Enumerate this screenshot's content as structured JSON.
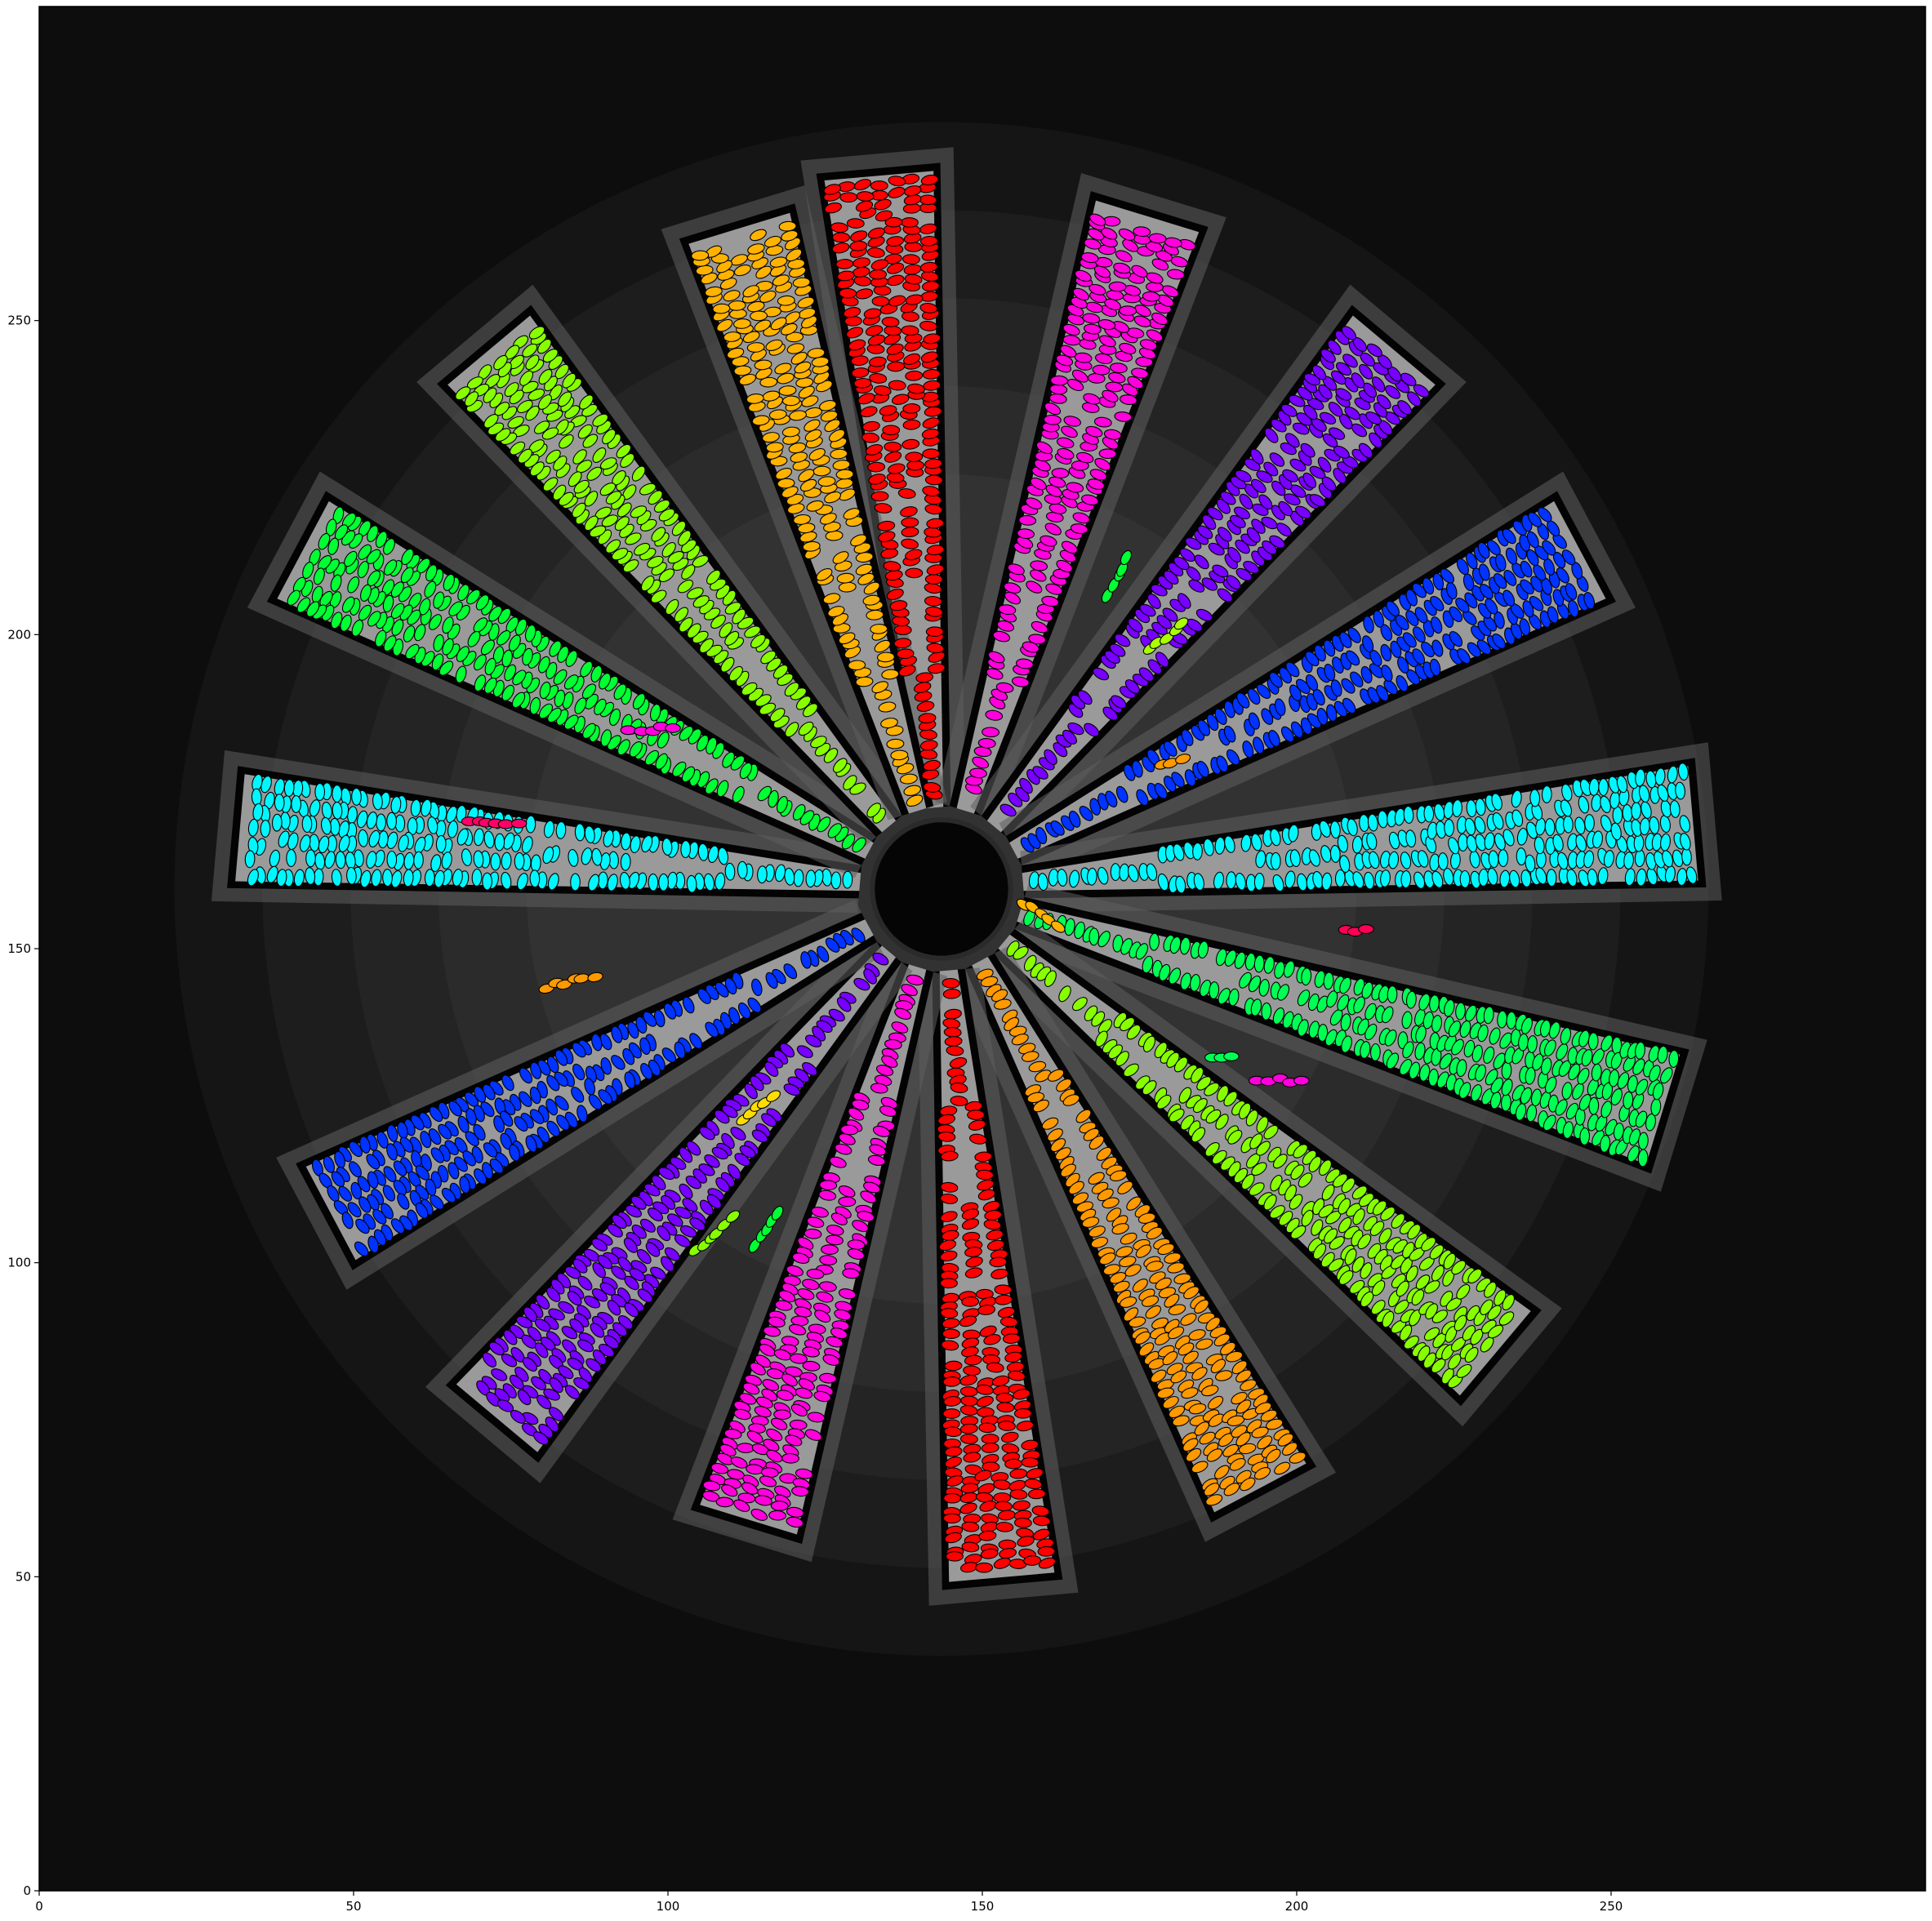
{
  "chart_data": {
    "type": "scatter",
    "title": "",
    "xlabel": "",
    "ylabel": "",
    "xlim": [
      0,
      300
    ],
    "ylim": [
      0,
      300
    ],
    "x_ticks": [
      0,
      50,
      100,
      150,
      200,
      250
    ],
    "y_ticks": [
      0,
      50,
      100,
      150,
      200,
      250
    ],
    "x_tick_labels": [
      "0",
      "50",
      "100",
      "150",
      "200",
      "250"
    ],
    "y_tick_labels": [
      "0",
      "50",
      "100",
      "150",
      "200",
      "250"
    ],
    "grid": false,
    "legend": "none",
    "background": "grayscale image of a 16-spoke radial star pattern",
    "center": [
      143.5,
      159.5
    ],
    "hub_radius": 11,
    "marker": "ellipse",
    "marker_edge_color": "#000000",
    "spokes": [
      {
        "angle_deg": 95,
        "r_inner": 13,
        "r_outer": 114,
        "color": "#ff0000"
      },
      {
        "angle_deg": 73,
        "r_inner": 13,
        "r_outer": 112,
        "color": "#ff00dd"
      },
      {
        "angle_deg": 50,
        "r_inner": 13,
        "r_outer": 112,
        "color": "#7700ff"
      },
      {
        "angle_deg": 28,
        "r_inner": 13,
        "r_outer": 115,
        "color": "#0033ff"
      },
      {
        "angle_deg": 5,
        "r_inner": 13,
        "r_outer": 120,
        "color": "#00f7ff"
      },
      {
        "angle_deg": -17,
        "r_inner": 13,
        "r_outer": 120,
        "color": "#00ff55"
      },
      {
        "angle_deg": -40,
        "r_inner": 13,
        "r_outer": 115,
        "color": "#88ff00"
      },
      {
        "angle_deg": -62,
        "r_inner": 13,
        "r_outer": 108,
        "color": "#ff9900"
      },
      {
        "angle_deg": -85,
        "r_inner": 13,
        "r_outer": 110,
        "color": "#ff0000"
      },
      {
        "angle_deg": -107,
        "r_inner": 13,
        "r_outer": 105,
        "color": "#ff00dd"
      },
      {
        "angle_deg": -130,
        "r_inner": 13,
        "r_outer": 110,
        "color": "#7700ff"
      },
      {
        "angle_deg": -152,
        "r_inner": 13,
        "r_outer": 110,
        "color": "#0033ff"
      },
      {
        "angle_deg": 175,
        "r_inner": 13,
        "r_outer": 112,
        "color": "#00f7ff"
      },
      {
        "angle_deg": 152,
        "r_inner": 13,
        "r_outer": 115,
        "color": "#00ff33"
      },
      {
        "angle_deg": 130,
        "r_inner": 13,
        "r_outer": 112,
        "color": "#88ff00"
      },
      {
        "angle_deg": 107,
        "r_inner": 13,
        "r_outer": 110,
        "color": "#ffb300"
      }
    ],
    "stray_clusters": [
      {
        "x": 181,
        "y": 180,
        "color": "#ff9900",
        "angle_deg": 18
      },
      {
        "x": 160,
        "y": 155,
        "color": "#ffb300",
        "angle_deg": -35
      },
      {
        "x": 85,
        "y": 145,
        "color": "#ff9900",
        "angle_deg": 12
      },
      {
        "x": 115,
        "y": 125,
        "color": "#ffdd00",
        "angle_deg": 32
      },
      {
        "x": 180,
        "y": 200,
        "color": "#aaff00",
        "angle_deg": 36
      },
      {
        "x": 108,
        "y": 105,
        "color": "#88ff00",
        "angle_deg": 38
      },
      {
        "x": 172,
        "y": 210,
        "color": "#00ff33",
        "angle_deg": 62
      },
      {
        "x": 116,
        "y": 106,
        "color": "#00ff33",
        "angle_deg": 58
      },
      {
        "x": 73,
        "y": 170,
        "color": "#ff0066",
        "angle_deg": 0
      },
      {
        "x": 198,
        "y": 129,
        "color": "#ff00dd",
        "angle_deg": 0
      },
      {
        "x": 210,
        "y": 153,
        "color": "#ff0055",
        "angle_deg": 0
      },
      {
        "x": 98,
        "y": 185,
        "color": "#ff00dd",
        "angle_deg": 0
      },
      {
        "x": 189,
        "y": 133,
        "color": "#00ff55",
        "angle_deg": 0
      }
    ]
  }
}
